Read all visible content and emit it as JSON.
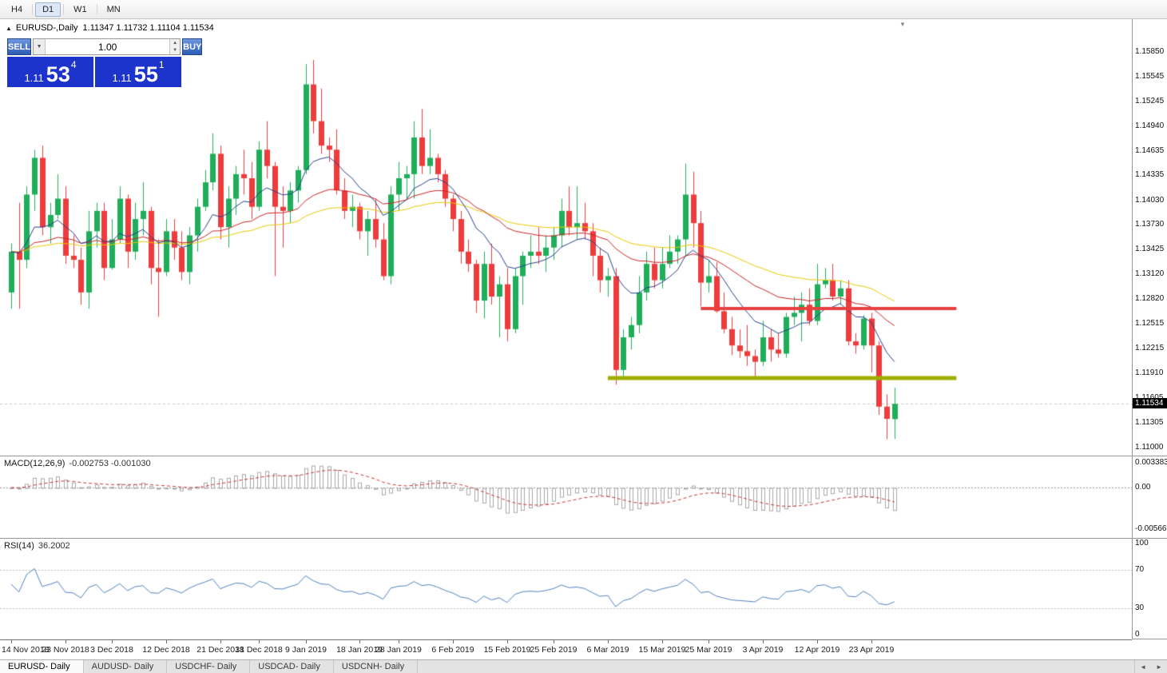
{
  "icons": {
    "collapse": "▲",
    "dropdown": "▼",
    "spin_up": "▲",
    "spin_down": "▼",
    "shift_marker": "▼",
    "scroll_left": "◄",
    "scroll_right": "►"
  },
  "toolbar": {
    "periods": [
      {
        "label": "H4",
        "active": false
      },
      {
        "label": "D1",
        "active": true
      },
      {
        "label": "W1",
        "active": false
      },
      {
        "label": "MN",
        "active": false
      }
    ]
  },
  "chart_header": {
    "symbol_title": "EURUSD-,Daily",
    "ohlc_text": "1.11347 1.11732 1.11104 1.11534"
  },
  "one_click_trading": {
    "sell_label": "SELL",
    "buy_label": "BUY",
    "volume_value": "1.00",
    "sell_price_small": "1.11",
    "sell_price_big": "53",
    "sell_price_sup": "4",
    "buy_price_small": "1.11",
    "buy_price_big": "55",
    "buy_price_sup": "1"
  },
  "price_scale": {
    "labels": [
      "1.15850",
      "1.15545",
      "1.15245",
      "1.14940",
      "1.14635",
      "1.14335",
      "1.14030",
      "1.13730",
      "1.13425",
      "1.13120",
      "1.12820",
      "1.12515",
      "1.12215",
      "1.11910",
      "1.11605",
      "1.11305",
      "1.11000"
    ],
    "current_price_tag": "1.11534"
  },
  "indicators": {
    "macd": {
      "label": "MACD(12,26,9)",
      "values_text": "-0.002753 -0.001030",
      "scale_labels": [
        "0.003383",
        "0.00",
        "-0.005663"
      ]
    },
    "rsi": {
      "label": "RSI(14)",
      "value_text": "36.2002",
      "scale_labels": [
        "100",
        "70",
        "30",
        "0"
      ]
    }
  },
  "x_axis": {
    "labels": [
      {
        "text": "14 Nov 2018",
        "bar_index": 0
      },
      {
        "text": "23 Nov 2018",
        "bar_index": 7
      },
      {
        "text": "3 Dec 2018",
        "bar_index": 13
      },
      {
        "text": "12 Dec 2018",
        "bar_index": 20
      },
      {
        "text": "21 Dec 2018",
        "bar_index": 27
      },
      {
        "text": "31 Dec 2018",
        "bar_index": 32
      },
      {
        "text": "9 Jan 2019",
        "bar_index": 38
      },
      {
        "text": "18 Jan 2019",
        "bar_index": 45
      },
      {
        "text": "28 Jan 2019",
        "bar_index": 50
      },
      {
        "text": "6 Feb 2019",
        "bar_index": 57
      },
      {
        "text": "15 Feb 2019",
        "bar_index": 64
      },
      {
        "text": "25 Feb 2019",
        "bar_index": 70
      },
      {
        "text": "6 Mar 2019",
        "bar_index": 77
      },
      {
        "text": "15 Mar 2019",
        "bar_index": 84
      },
      {
        "text": "25 Mar 2019",
        "bar_index": 90
      },
      {
        "text": "3 Apr 2019",
        "bar_index": 97
      },
      {
        "text": "12 Apr 2019",
        "bar_index": 104
      },
      {
        "text": "23 Apr 2019",
        "bar_index": 111
      }
    ]
  },
  "bottom_tabs": {
    "tabs": [
      {
        "label": "EURUSD- Daily",
        "active": true
      },
      {
        "label": "AUDUSD- Daily",
        "active": false
      },
      {
        "label": "USDCHF- Daily",
        "active": false
      },
      {
        "label": "USDCAD- Daily",
        "active": false
      },
      {
        "label": "USDCNH- Daily",
        "active": false
      }
    ]
  },
  "colors": {
    "bull": "#1fae5a",
    "bear": "#ee3c3c",
    "ma_fast": "#27408b",
    "ma_mid": "#cc2222",
    "ma_slow": "#e8c800",
    "resistance_line": "#e84040",
    "support_line": "#9fae00",
    "macd_hist": "#a8a8a8",
    "macd_signal": "#cc3333",
    "rsi_line": "#4f81bd",
    "bid_line": "#c9c9c9",
    "price_tag_bg": "#000000"
  },
  "chart_data": {
    "type": "candlestick",
    "symbol": "EURUSD-",
    "timeframe": "Daily",
    "title": "EURUSD-,Daily",
    "price_range": [
      1.109,
      1.1625
    ],
    "bid": 1.11534,
    "current_bar_ohlc": {
      "open": 1.11347,
      "high": 1.11732,
      "low": 1.11104,
      "close": 1.11534
    },
    "moving_averages": [
      {
        "role": "fast",
        "type": "ema",
        "period": 10
      },
      {
        "role": "mid",
        "type": "ema",
        "period": 30
      },
      {
        "role": "slow",
        "type": "ema",
        "period": 55
      }
    ],
    "hlines": [
      {
        "role": "resistance",
        "price": 1.127,
        "from_bar": 89,
        "to_bar": 122
      },
      {
        "role": "support",
        "price": 1.1185,
        "from_bar": 77,
        "to_bar": 122
      }
    ],
    "macd": {
      "fast": 12,
      "slow": 26,
      "signal": 9,
      "range": [
        -0.0068,
        0.0042
      ],
      "current_main": -0.002753,
      "current_signal": -0.00103
    },
    "rsi": {
      "period": 14,
      "range": [
        -2,
        102
      ],
      "levels": [
        70,
        30
      ],
      "current": 36.2002
    },
    "ohlc": [
      [
        1.129,
        1.135,
        1.127,
        1.134
      ],
      [
        1.134,
        1.14,
        1.127,
        1.133
      ],
      [
        1.133,
        1.142,
        1.132,
        1.141
      ],
      [
        1.141,
        1.1465,
        1.139,
        1.1455
      ],
      [
        1.1455,
        1.147,
        1.136,
        1.137
      ],
      [
        1.137,
        1.14,
        1.135,
        1.1385
      ],
      [
        1.1385,
        1.1435,
        1.138,
        1.1405
      ],
      [
        1.1405,
        1.142,
        1.1325,
        1.1335
      ],
      [
        1.1335,
        1.136,
        1.132,
        1.133
      ],
      [
        1.133,
        1.1345,
        1.1275,
        1.129
      ],
      [
        1.129,
        1.139,
        1.127,
        1.1365
      ],
      [
        1.1365,
        1.14,
        1.1345,
        1.139
      ],
      [
        1.139,
        1.14,
        1.1305,
        1.132
      ],
      [
        1.132,
        1.138,
        1.1318,
        1.1355
      ],
      [
        1.1355,
        1.142,
        1.135,
        1.1405
      ],
      [
        1.1405,
        1.141,
        1.132,
        1.134
      ],
      [
        1.134,
        1.14,
        1.133,
        1.138
      ],
      [
        1.138,
        1.1425,
        1.136,
        1.139
      ],
      [
        1.139,
        1.1395,
        1.13,
        1.132
      ],
      [
        1.132,
        1.1355,
        1.126,
        1.1315
      ],
      [
        1.1315,
        1.138,
        1.131,
        1.1365
      ],
      [
        1.1365,
        1.138,
        1.133,
        1.1345
      ],
      [
        1.1345,
        1.1365,
        1.1305,
        1.1315
      ],
      [
        1.1315,
        1.137,
        1.13,
        1.136
      ],
      [
        1.136,
        1.1405,
        1.134,
        1.1395
      ],
      [
        1.1395,
        1.144,
        1.139,
        1.1425
      ],
      [
        1.1425,
        1.1485,
        1.1415,
        1.146
      ],
      [
        1.146,
        1.147,
        1.1355,
        1.137
      ],
      [
        1.137,
        1.142,
        1.1345,
        1.1405
      ],
      [
        1.1405,
        1.1445,
        1.1385,
        1.1435
      ],
      [
        1.1435,
        1.1465,
        1.141,
        1.143
      ],
      [
        1.143,
        1.145,
        1.138,
        1.1395
      ],
      [
        1.1395,
        1.1475,
        1.139,
        1.1465
      ],
      [
        1.1465,
        1.15,
        1.143,
        1.1445
      ],
      [
        1.1445,
        1.145,
        1.131,
        1.1395
      ],
      [
        1.1395,
        1.142,
        1.1345,
        1.139
      ],
      [
        1.139,
        1.1425,
        1.1375,
        1.1415
      ],
      [
        1.1415,
        1.1445,
        1.14,
        1.144
      ],
      [
        1.144,
        1.157,
        1.1435,
        1.1545
      ],
      [
        1.1545,
        1.1575,
        1.1485,
        1.15
      ],
      [
        1.15,
        1.154,
        1.146,
        1.147
      ],
      [
        1.147,
        1.148,
        1.145,
        1.1465
      ],
      [
        1.1465,
        1.149,
        1.141,
        1.1415
      ],
      [
        1.1415,
        1.143,
        1.138,
        1.139
      ],
      [
        1.139,
        1.141,
        1.137,
        1.1395
      ],
      [
        1.1395,
        1.14,
        1.1355,
        1.1365
      ],
      [
        1.1365,
        1.139,
        1.1335,
        1.138
      ],
      [
        1.138,
        1.1405,
        1.1345,
        1.1355
      ],
      [
        1.1355,
        1.1375,
        1.1305,
        1.131
      ],
      [
        1.131,
        1.142,
        1.13,
        1.141
      ],
      [
        1.141,
        1.145,
        1.139,
        1.143
      ],
      [
        1.143,
        1.1445,
        1.1405,
        1.1435
      ],
      [
        1.1435,
        1.15,
        1.1405,
        1.148
      ],
      [
        1.148,
        1.1515,
        1.1435,
        1.1445
      ],
      [
        1.1445,
        1.149,
        1.1435,
        1.1455
      ],
      [
        1.1455,
        1.146,
        1.1425,
        1.1435
      ],
      [
        1.1435,
        1.144,
        1.1395,
        1.1405
      ],
      [
        1.1405,
        1.141,
        1.1365,
        1.138
      ],
      [
        1.138,
        1.139,
        1.1325,
        1.134
      ],
      [
        1.134,
        1.1355,
        1.1315,
        1.1325
      ],
      [
        1.1325,
        1.133,
        1.1265,
        1.128
      ],
      [
        1.128,
        1.134,
        1.1258,
        1.1325
      ],
      [
        1.1325,
        1.135,
        1.1275,
        1.1285
      ],
      [
        1.1285,
        1.131,
        1.1235,
        1.13
      ],
      [
        1.13,
        1.132,
        1.123,
        1.1245
      ],
      [
        1.1245,
        1.132,
        1.124,
        1.131
      ],
      [
        1.131,
        1.134,
        1.1275,
        1.1335
      ],
      [
        1.1335,
        1.136,
        1.132,
        1.134
      ],
      [
        1.134,
        1.137,
        1.1325,
        1.1335
      ],
      [
        1.1335,
        1.136,
        1.1315,
        1.1345
      ],
      [
        1.1345,
        1.137,
        1.133,
        1.136
      ],
      [
        1.136,
        1.1405,
        1.1345,
        1.139
      ],
      [
        1.139,
        1.142,
        1.136,
        1.137
      ],
      [
        1.137,
        1.142,
        1.1355,
        1.1375
      ],
      [
        1.1375,
        1.14,
        1.1355,
        1.1365
      ],
      [
        1.1365,
        1.1375,
        1.131,
        1.1335
      ],
      [
        1.1335,
        1.1345,
        1.129,
        1.1305
      ],
      [
        1.1305,
        1.132,
        1.1285,
        1.131
      ],
      [
        1.131,
        1.132,
        1.1177,
        1.1195
      ],
      [
        1.1195,
        1.1245,
        1.1185,
        1.1235
      ],
      [
        1.1235,
        1.126,
        1.122,
        1.125
      ],
      [
        1.125,
        1.131,
        1.124,
        1.129
      ],
      [
        1.129,
        1.134,
        1.128,
        1.1325
      ],
      [
        1.1325,
        1.1345,
        1.1295,
        1.1305
      ],
      [
        1.1305,
        1.1345,
        1.1295,
        1.1325
      ],
      [
        1.1325,
        1.136,
        1.132,
        1.134
      ],
      [
        1.134,
        1.136,
        1.1325,
        1.1355
      ],
      [
        1.1355,
        1.1448,
        1.1335,
        1.141
      ],
      [
        1.141,
        1.1438,
        1.1345,
        1.1375
      ],
      [
        1.1375,
        1.139,
        1.1273,
        1.1302
      ],
      [
        1.1302,
        1.133,
        1.129,
        1.131
      ],
      [
        1.131,
        1.1327,
        1.1265,
        1.1267
      ],
      [
        1.1267,
        1.129,
        1.124,
        1.1245
      ],
      [
        1.1245,
        1.126,
        1.1213,
        1.1225
      ],
      [
        1.1225,
        1.1245,
        1.121,
        1.1218
      ],
      [
        1.1218,
        1.125,
        1.12,
        1.1212
      ],
      [
        1.1212,
        1.122,
        1.1183,
        1.1205
      ],
      [
        1.1205,
        1.1255,
        1.12,
        1.1235
      ],
      [
        1.1235,
        1.1245,
        1.1205,
        1.122
      ],
      [
        1.122,
        1.124,
        1.121,
        1.1215
      ],
      [
        1.1215,
        1.1265,
        1.121,
        1.126
      ],
      [
        1.126,
        1.1285,
        1.125,
        1.1265
      ],
      [
        1.1265,
        1.129,
        1.123,
        1.1275
      ],
      [
        1.1275,
        1.1295,
        1.125,
        1.1255
      ],
      [
        1.1255,
        1.1325,
        1.125,
        1.13
      ],
      [
        1.13,
        1.132,
        1.1295,
        1.1305
      ],
      [
        1.1305,
        1.1325,
        1.128,
        1.1285
      ],
      [
        1.1285,
        1.1305,
        1.1275,
        1.1295
      ],
      [
        1.1295,
        1.1305,
        1.1225,
        1.123
      ],
      [
        1.123,
        1.124,
        1.1215,
        1.1225
      ],
      [
        1.1225,
        1.1262,
        1.122,
        1.1258
      ],
      [
        1.1258,
        1.1265,
        1.1192,
        1.1225
      ],
      [
        1.1225,
        1.123,
        1.114,
        1.115
      ],
      [
        1.115,
        1.1165,
        1.111,
        1.1135
      ],
      [
        1.11347,
        1.11732,
        1.11104,
        1.11534
      ]
    ]
  }
}
